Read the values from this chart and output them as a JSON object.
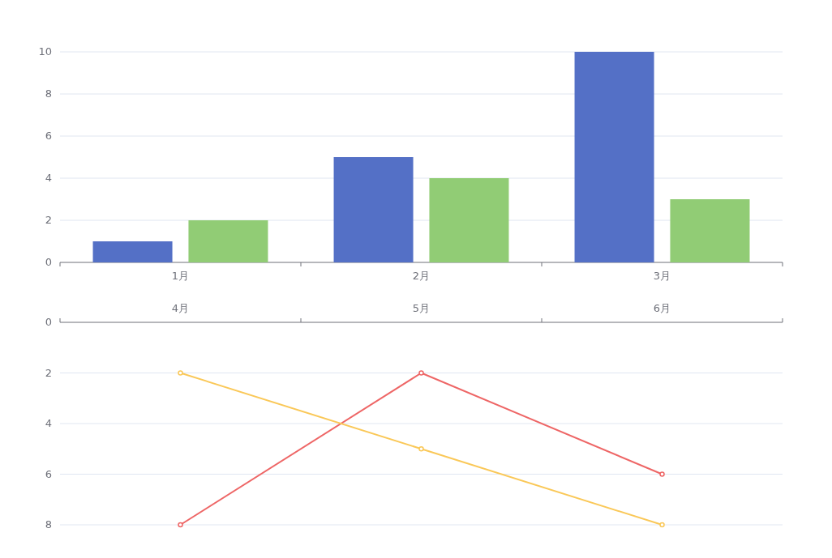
{
  "chart_data": [
    {
      "type": "bar",
      "categories": [
        "1月",
        "2月",
        "3月"
      ],
      "series": [
        {
          "color": "#5470c6",
          "values": [
            1,
            5,
            10
          ]
        },
        {
          "color": "#91cc75",
          "values": [
            2,
            4,
            3
          ]
        }
      ],
      "ylim": [
        0,
        10
      ],
      "yticks": [
        0,
        2,
        4,
        6,
        8,
        10
      ],
      "grid": "y"
    },
    {
      "type": "line",
      "categories": [
        "4月",
        "5月",
        "6月"
      ],
      "series": [
        {
          "color": "#ee6666",
          "values": [
            8,
            2,
            6
          ]
        },
        {
          "color": "#fac858",
          "values": [
            2,
            5,
            8
          ]
        }
      ],
      "ylim": [
        8,
        0
      ],
      "yticks": [
        0,
        2,
        4,
        6,
        8
      ],
      "grid": "y",
      "marker": "circle"
    }
  ]
}
